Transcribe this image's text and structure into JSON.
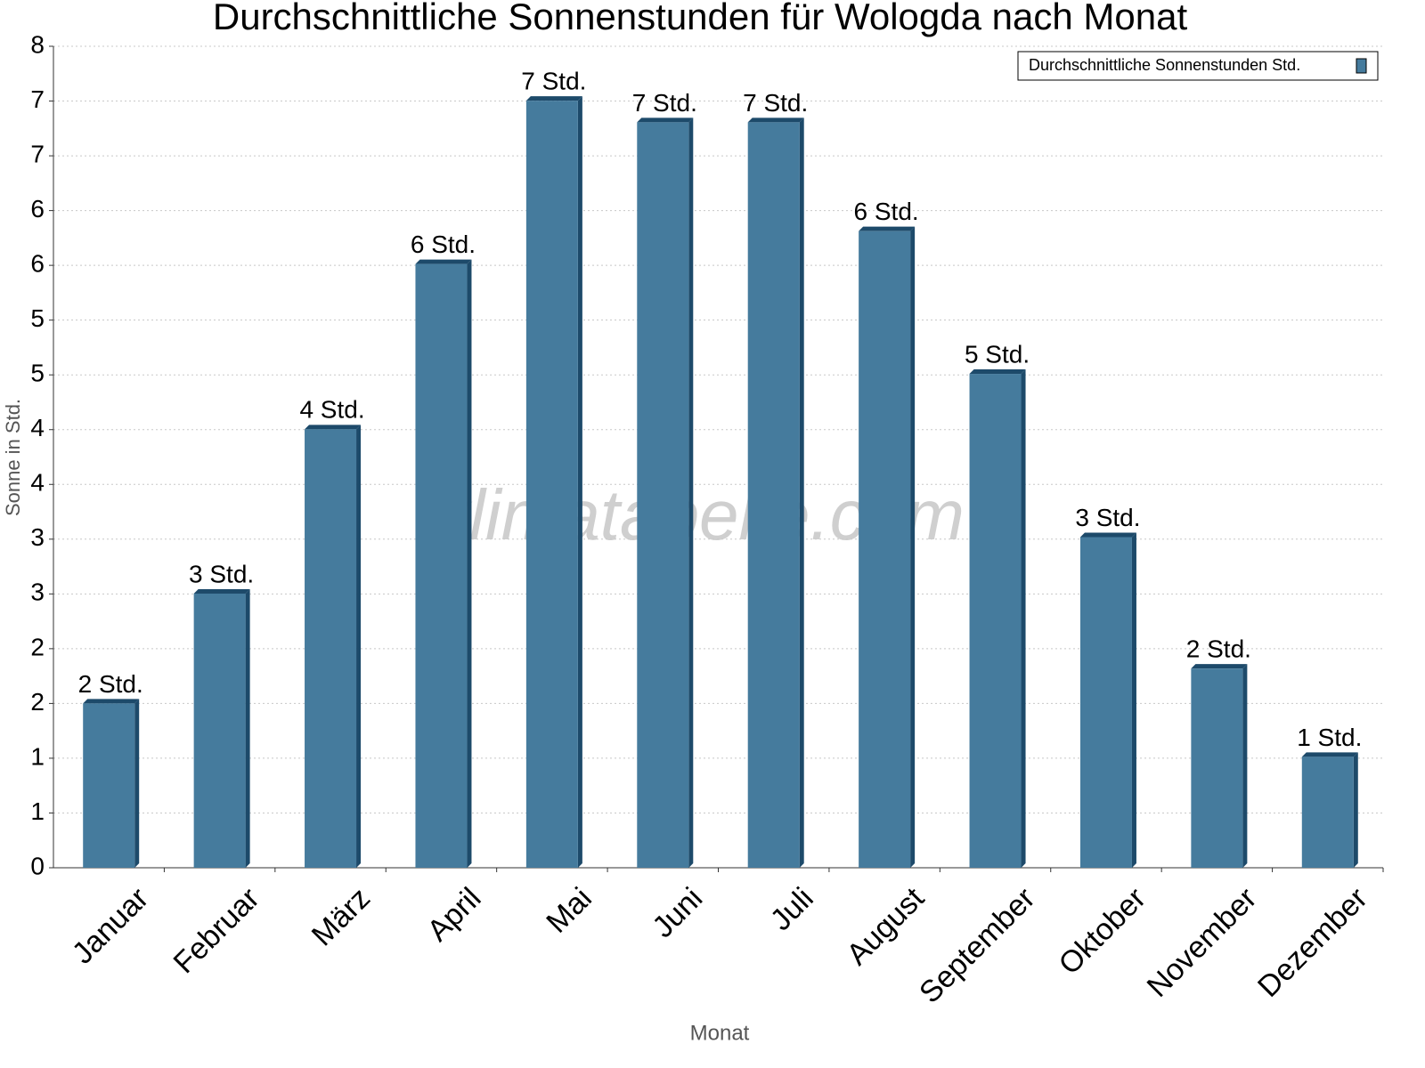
{
  "chart_data": {
    "type": "bar",
    "title": "Durchschnittliche Sonnenstunden für Wologda nach Monat",
    "x_label": "Monat",
    "y_label": "Sonne in Std.",
    "watermark": "klimatabelle.com",
    "categories": [
      "Januar",
      "Februar",
      "März",
      "April",
      "Mai",
      "Juni",
      "Juli",
      "August",
      "September",
      "Oktober",
      "November",
      "Dezember"
    ],
    "series": [
      {
        "name": "Durchschnittliche Sonnenstunden Std.",
        "color": "#457b9d",
        "values": [
          1.6,
          2.67,
          4.27,
          5.88,
          7.47,
          7.26,
          7.26,
          6.2,
          4.81,
          3.22,
          1.94,
          1.08
        ],
        "value_labels": [
          "2 Std.",
          "3 Std.",
          "4 Std.",
          "6 Std.",
          "7 Std.",
          "7 Std.",
          "7 Std.",
          "6 Std.",
          "5 Std.",
          "3 Std.",
          "2 Std.",
          "1 Std."
        ]
      }
    ],
    "ylim": [
      0,
      8
    ],
    "yticks": [
      0,
      {
        "value": 0.5333,
        "label": "1"
      },
      {
        "value": 1.0667,
        "label": "1"
      },
      {
        "value": 1.6,
        "label": "2"
      },
      {
        "value": 2.1333,
        "label": "2"
      },
      {
        "value": 2.6667,
        "label": "3"
      },
      {
        "value": 3.2,
        "label": "3"
      },
      {
        "value": 3.7333,
        "label": "4"
      },
      {
        "value": 4.2667,
        "label": "4"
      },
      {
        "value": 4.8,
        "label": "5"
      },
      {
        "value": 5.3333,
        "label": "5"
      },
      {
        "value": 5.8667,
        "label": "6"
      },
      {
        "value": 6.4,
        "label": "6"
      },
      {
        "value": 6.9333,
        "label": "7"
      },
      {
        "value": 7.4667,
        "label": "7"
      },
      8
    ],
    "grid": true,
    "legend": "top-right"
  }
}
